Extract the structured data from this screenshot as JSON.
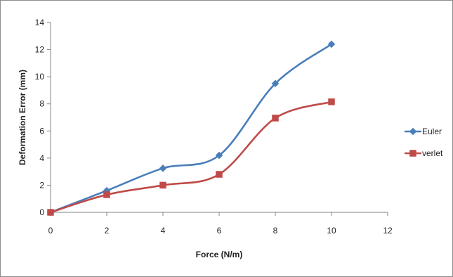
{
  "chart_data": {
    "type": "line",
    "title": "",
    "xlabel": "Force (N/m)",
    "ylabel": "Deformation Error (mm)",
    "xlim": [
      0,
      12
    ],
    "ylim": [
      0,
      14
    ],
    "xticks": [
      0,
      2,
      4,
      6,
      8,
      10,
      12
    ],
    "yticks": [
      0,
      2,
      4,
      6,
      8,
      10,
      12,
      14
    ],
    "grid": false,
    "legend_position": "right",
    "smooth": true,
    "x": [
      0,
      2,
      4,
      6,
      8,
      10
    ],
    "series": [
      {
        "name": "Euler",
        "values": [
          0,
          1.6,
          3.25,
          4.2,
          9.5,
          12.4
        ],
        "color": "#4a7ebb",
        "marker": "diamond"
      },
      {
        "name": "verlet",
        "values": [
          0,
          1.3,
          2.0,
          2.8,
          6.95,
          8.15
        ],
        "color": "#be4b48",
        "marker": "square"
      }
    ]
  }
}
